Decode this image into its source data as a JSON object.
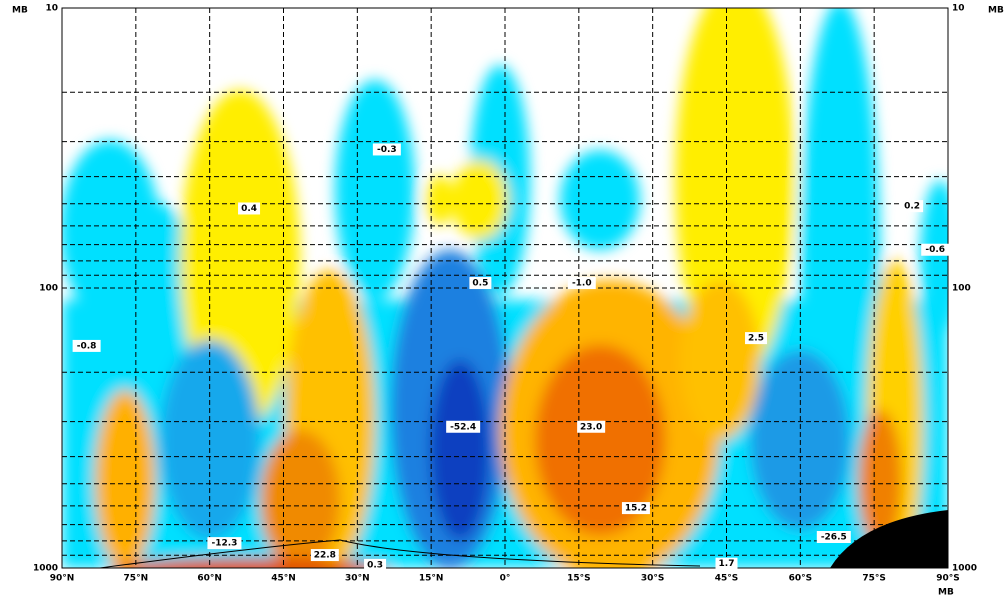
{
  "chart_data": {
    "type": "contour",
    "y_label": "MB",
    "xlim": [
      -90,
      90
    ],
    "xticks": [
      {
        "value": -90,
        "label": "90°N"
      },
      {
        "value": -75,
        "label": "75°N"
      },
      {
        "value": -60,
        "label": "60°N"
      },
      {
        "value": -45,
        "label": "45°N"
      },
      {
        "value": -30,
        "label": "30°N"
      },
      {
        "value": -15,
        "label": "15°N"
      },
      {
        "value": 0,
        "label": "0°"
      },
      {
        "value": 15,
        "label": "15°S"
      },
      {
        "value": 30,
        "label": "30°S"
      },
      {
        "value": 45,
        "label": "45°S"
      },
      {
        "value": 60,
        "label": "60°S"
      },
      {
        "value": 75,
        "label": "75°S"
      },
      {
        "value": 90,
        "label": "90°S"
      }
    ],
    "ylim": [
      1000,
      10
    ],
    "log_y": true,
    "yticks": [
      10,
      100,
      1000
    ],
    "minor_grid": [
      20,
      30,
      40,
      50,
      60,
      70,
      80,
      90,
      200,
      300,
      400,
      500,
      600,
      700,
      800,
      900
    ],
    "grid": true,
    "contour_labels": [
      {
        "label": "-0.3",
        "value": -0.3,
        "x": -24,
        "y": 32
      },
      {
        "label": "0.4",
        "value": 0.4,
        "x": -52,
        "y": 52
      },
      {
        "label": "-0.8",
        "value": -0.8,
        "x": -85,
        "y": 161
      },
      {
        "label": "0.5",
        "value": 0.5,
        "x": -5,
        "y": 96
      },
      {
        "label": "-1.0",
        "value": -1.0,
        "x": 15.6,
        "y": 96
      },
      {
        "label": "2.5",
        "value": 2.5,
        "x": 51,
        "y": 151
      },
      {
        "label": "-52.4",
        "value": -52.4,
        "x": -8.5,
        "y": 313
      },
      {
        "label": "23.0",
        "value": 23.0,
        "x": 17.5,
        "y": 313
      },
      {
        "label": "15.2",
        "value": 15.2,
        "x": 26.6,
        "y": 611
      },
      {
        "label": "-12.3",
        "value": -12.3,
        "x": -57,
        "y": 815
      },
      {
        "label": "22.8",
        "value": 22.8,
        "x": -36.6,
        "y": 899
      },
      {
        "label": "0.3",
        "value": 0.3,
        "x": -26.4,
        "y": 975
      },
      {
        "label": "1.7",
        "value": 1.7,
        "x": 45,
        "y": 965
      },
      {
        "label": "-26.5",
        "value": -26.5,
        "x": 66.8,
        "y": 775
      },
      {
        "label": "0.2",
        "value": 0.2,
        "x": 82.7,
        "y": 51
      },
      {
        "label": "-0.6",
        "value": -0.6,
        "x": 87.4,
        "y": 73
      }
    ]
  }
}
